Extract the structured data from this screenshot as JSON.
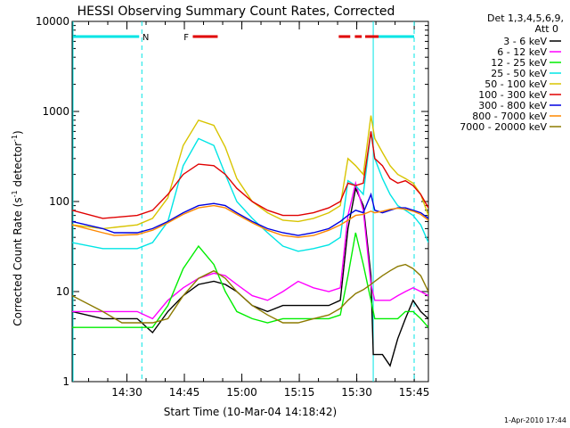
{
  "chart_data": {
    "type": "line",
    "title": "HESSI Observing Summary Count Rates, Corrected",
    "xlabel": "Start Time (10-Mar-04 14:18:42)",
    "ylabel_main": "Corrected Count Rate (s",
    "ylabel_sup1": "-1",
    "ylabel_mid": " detector",
    "ylabel_sup2": "-1",
    "ylabel_end": ")",
    "footer_date": "1-Apr-2010 17:44",
    "legend_header": [
      "Det 1,3,4,5,6,9,",
      "Att 0"
    ],
    "xlim": [
      -3,
      90
    ],
    "ylim": [
      1,
      10000
    ],
    "yscale": "log",
    "x_units": "minutes after 14:18:42",
    "x_ticks": [
      {
        "x": 11.3,
        "label": "14:30"
      },
      {
        "x": 26.3,
        "label": "14:45"
      },
      {
        "x": 41.3,
        "label": "15:00"
      },
      {
        "x": 56.3,
        "label": "15:15"
      },
      {
        "x": 71.3,
        "label": "15:30"
      },
      {
        "x": 86.3,
        "label": "15:45"
      }
    ],
    "y_ticks": [
      {
        "y": 1,
        "label": "1"
      },
      {
        "y": 10,
        "label": "10"
      },
      {
        "y": 100,
        "label": "100"
      },
      {
        "y": 1000,
        "label": "1000"
      },
      {
        "y": 10000,
        "label": "10000"
      }
    ],
    "vlines": [
      {
        "x": -2.8,
        "color": "#00e5e5",
        "dashed": false
      },
      {
        "x": 15.2,
        "color": "#00e5e5",
        "dashed": true
      },
      {
        "x": 75.6,
        "color": "#00e5e5",
        "dashed": false
      },
      {
        "x": 91.5,
        "color": "#00e5e5",
        "dashed": true
      }
    ],
    "top_bars": [
      {
        "x0": -2.8,
        "x1": 14.5,
        "color": "#00e5e5"
      },
      {
        "x0": 75.6,
        "x1": 91.0,
        "color": "#00e5e5"
      },
      {
        "x0": 28.5,
        "x1": 35.0,
        "color": "#e00000"
      },
      {
        "x0": 66.6,
        "x1": 69.6,
        "color": "#e00000"
      },
      {
        "x0": 70.8,
        "x1": 72.6,
        "color": "#e00000"
      },
      {
        "x0": 73.5,
        "x1": 77.0,
        "color": "#e00000"
      }
    ],
    "top_labels": [
      {
        "x": 16.2,
        "text": "N",
        "color": "#00b0b0"
      },
      {
        "x": 26.8,
        "text": "F",
        "color": "#e00000"
      }
    ],
    "series": [
      {
        "name": "3 - 6 keV",
        "color": "#000000",
        "x": [
          -3,
          5,
          14,
          18,
          22,
          26,
          30,
          34,
          37,
          40,
          44,
          48,
          52,
          56,
          60,
          64,
          67,
          69,
          71,
          73,
          75,
          75.6,
          76,
          78,
          80,
          82,
          84,
          86,
          88,
          90
        ],
        "values": [
          6,
          5,
          5,
          3.5,
          6,
          9,
          12,
          13,
          12,
          10,
          7,
          6,
          7,
          7,
          7,
          7,
          8,
          50,
          140,
          90,
          15,
          2,
          2,
          2,
          1.5,
          3,
          5,
          8,
          6,
          5
        ]
      },
      {
        "name": "6 - 12 keV",
        "color": "#ff00ff",
        "x": [
          -3,
          5,
          14,
          18,
          22,
          26,
          30,
          34,
          37,
          40,
          44,
          48,
          52,
          56,
          60,
          64,
          67,
          69,
          71,
          73,
          75,
          76,
          78,
          80,
          82,
          84,
          86,
          88,
          90
        ],
        "values": [
          6,
          6,
          6,
          5,
          8,
          11,
          14,
          16,
          15,
          12,
          9,
          8,
          10,
          13,
          11,
          10,
          11,
          70,
          160,
          80,
          12,
          8,
          8,
          8,
          9,
          10,
          11,
          10,
          9
        ]
      },
      {
        "name": "12 - 25 keV",
        "color": "#00ee00",
        "x": [
          -3,
          5,
          14,
          18,
          22,
          26,
          30,
          34,
          37,
          40,
          44,
          48,
          52,
          56,
          60,
          64,
          67,
          69,
          71,
          73,
          75,
          76,
          78,
          80,
          82,
          84,
          86,
          88,
          90
        ],
        "values": [
          4,
          4,
          4,
          4,
          7,
          18,
          32,
          20,
          10,
          6,
          5,
          4.5,
          5,
          5,
          5,
          5,
          5.5,
          15,
          45,
          20,
          8,
          5,
          5,
          5,
          5,
          6,
          6,
          5,
          4
        ]
      },
      {
        "name": "25 - 50 keV",
        "color": "#00e5e5",
        "x": [
          -3,
          5,
          14,
          18,
          22,
          26,
          30,
          34,
          37,
          40,
          44,
          48,
          52,
          56,
          60,
          64,
          67,
          69,
          71,
          73,
          75,
          76,
          78,
          80,
          82,
          84,
          86,
          88,
          90
        ],
        "values": [
          35,
          30,
          30,
          35,
          60,
          250,
          500,
          420,
          200,
          100,
          65,
          45,
          32,
          28,
          30,
          33,
          40,
          170,
          150,
          120,
          600,
          300,
          180,
          120,
          90,
          80,
          70,
          55,
          35
        ]
      },
      {
        "name": "50 - 100 keV",
        "color": "#d8c400",
        "x": [
          -3,
          5,
          14,
          18,
          22,
          26,
          30,
          34,
          37,
          40,
          44,
          48,
          52,
          56,
          60,
          64,
          67,
          69,
          71,
          73,
          75,
          76,
          78,
          80,
          82,
          84,
          86,
          88,
          90
        ],
        "values": [
          55,
          50,
          55,
          65,
          110,
          420,
          800,
          700,
          400,
          180,
          100,
          75,
          62,
          60,
          65,
          75,
          90,
          300,
          250,
          200,
          900,
          500,
          350,
          250,
          200,
          180,
          160,
          120,
          70
        ]
      },
      {
        "name": "100 - 300 keV",
        "color": "#e00000",
        "x": [
          -3,
          5,
          14,
          18,
          22,
          26,
          30,
          34,
          37,
          40,
          44,
          48,
          52,
          56,
          60,
          64,
          67,
          69,
          71,
          73,
          75,
          76,
          78,
          80,
          82,
          84,
          86,
          88,
          90
        ],
        "values": [
          80,
          65,
          70,
          80,
          120,
          200,
          260,
          250,
          200,
          140,
          100,
          80,
          70,
          70,
          75,
          85,
          100,
          160,
          150,
          160,
          600,
          300,
          250,
          180,
          160,
          170,
          150,
          120,
          85
        ]
      },
      {
        "name": "300 - 800 keV",
        "color": "#0000e0",
        "x": [
          -3,
          5,
          8,
          14,
          18,
          22,
          26,
          30,
          34,
          37,
          40,
          44,
          48,
          52,
          56,
          60,
          64,
          67,
          69,
          71,
          73,
          75,
          76,
          78,
          80,
          82,
          84,
          86,
          88,
          90
        ],
        "values": [
          60,
          50,
          45,
          45,
          50,
          60,
          75,
          90,
          95,
          90,
          75,
          60,
          50,
          45,
          42,
          45,
          50,
          60,
          70,
          80,
          75,
          120,
          80,
          75,
          80,
          85,
          85,
          80,
          75,
          65
        ]
      },
      {
        "name": "800 - 7000 keV",
        "color": "#ff8800",
        "x": [
          -3,
          5,
          8,
          14,
          18,
          22,
          26,
          30,
          34,
          37,
          40,
          44,
          48,
          52,
          56,
          60,
          64,
          67,
          69,
          71,
          73,
          75,
          76,
          78,
          80,
          82,
          84,
          86,
          88,
          90
        ],
        "values": [
          55,
          45,
          42,
          43,
          48,
          58,
          72,
          85,
          90,
          85,
          72,
          58,
          48,
          42,
          40,
          42,
          48,
          55,
          62,
          70,
          72,
          78,
          75,
          78,
          82,
          84,
          82,
          78,
          72,
          62
        ]
      },
      {
        "name": "7000 - 20000 keV",
        "color": "#8c7a00",
        "x": [
          -3,
          5,
          10,
          14,
          18,
          22,
          26,
          30,
          34,
          37,
          40,
          44,
          48,
          52,
          56,
          60,
          64,
          67,
          69,
          71,
          73,
          75,
          76,
          78,
          80,
          82,
          84,
          86,
          88,
          90
        ],
        "values": [
          9,
          6,
          4.5,
          4.5,
          4.5,
          5,
          9,
          14,
          17,
          14,
          10,
          7,
          5.5,
          4.5,
          4.5,
          5,
          5.5,
          6.5,
          8,
          9.5,
          10.5,
          12,
          13,
          15,
          17,
          19,
          20,
          18,
          15,
          10
        ]
      }
    ]
  }
}
